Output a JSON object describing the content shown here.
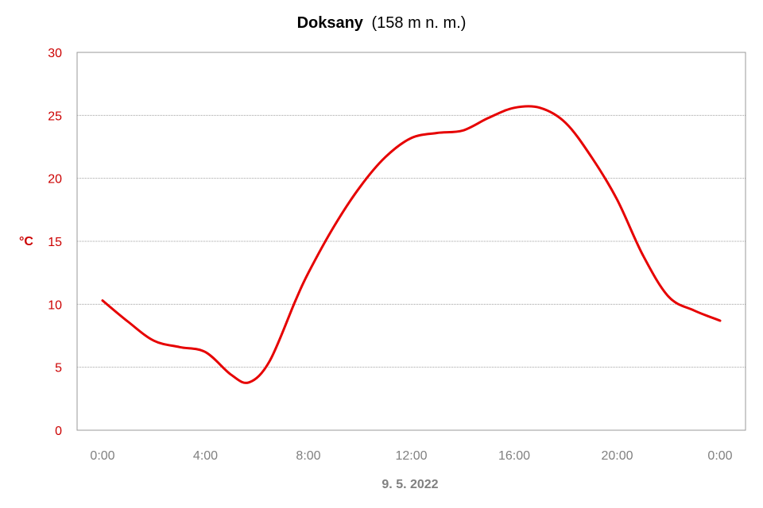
{
  "chart_data": {
    "type": "line",
    "title": "Doksany",
    "subtitle": "(158 m n. m.)",
    "xlabel": "9. 5. 2022",
    "ylabel": "°C",
    "ylim": [
      0,
      30
    ],
    "xlim": [
      0,
      24
    ],
    "grid": true,
    "x_tick_labels": [
      "0:00",
      "4:00",
      "8:00",
      "12:00",
      "16:00",
      "20:00",
      "0:00"
    ],
    "y_ticks": [
      0,
      5,
      10,
      15,
      20,
      25,
      30
    ],
    "series": [
      {
        "x": [
          0,
          1,
          2,
          3,
          4,
          5,
          5.7,
          6.5,
          7.5,
          8,
          9,
          10,
          11,
          12,
          13,
          14,
          15,
          16,
          17,
          18,
          19,
          20,
          21,
          22,
          23,
          24
        ],
        "y": [
          10.3,
          8.6,
          7.1,
          6.6,
          6.2,
          4.4,
          3.8,
          5.5,
          10.3,
          12.5,
          16.2,
          19.3,
          21.7,
          23.2,
          23.6,
          23.8,
          24.8,
          25.6,
          25.6,
          24.4,
          21.7,
          18.3,
          13.9,
          10.6,
          9.5,
          8.7
        ]
      }
    ],
    "colors": {
      "line": "#e60000",
      "y_axis_text": "#cc0000",
      "x_axis_text": "#808080",
      "grid": "#a0a0a0",
      "frame": "#999999"
    }
  }
}
